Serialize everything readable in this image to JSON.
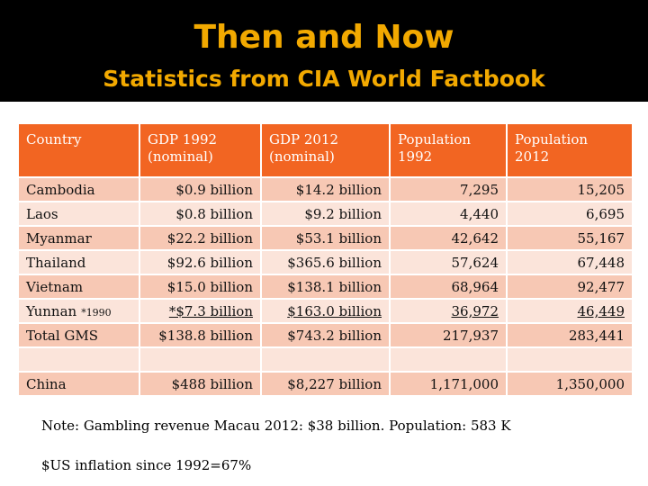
{
  "header": {
    "title": "Then and Now",
    "subtitle": "Statistics from CIA World Factbook"
  },
  "table": {
    "columns": [
      "Country",
      "GDP 1992 (nominal)",
      "GDP 2012 (nominal)",
      "Population 1992",
      "Population 2012"
    ],
    "rows": [
      {
        "country": "Cambodia",
        "gdp1992": "$0.9  billion",
        "gdp2012": "$14.2 billion",
        "pop1992": "7,295",
        "pop2012": "15,205"
      },
      {
        "country": "Laos",
        "gdp1992": "$0.8 billion",
        "gdp2012": "$9.2 billion",
        "pop1992": "4,440",
        "pop2012": "6,695"
      },
      {
        "country": "Myanmar",
        "gdp1992": "$22.2 billion",
        "gdp2012": "$53.1 billion",
        "pop1992": "42,642",
        "pop2012": "55,167"
      },
      {
        "country": "Thailand",
        "gdp1992": "$92.6 billion",
        "gdp2012": "$365.6 billion",
        "pop1992": "57,624",
        "pop2012": "67,448"
      },
      {
        "country": "Vietnam",
        "gdp1992": "$15.0 billion",
        "gdp2012": "$138.1 billion",
        "pop1992": "68,964",
        "pop2012": "92,477"
      },
      {
        "country": "Yunnan",
        "country_note": "*1990",
        "gdp1992": "*$7.3 billion",
        "gdp2012": "$163.0 billion",
        "pop1992": "36,972",
        "pop2012": "46,449"
      },
      {
        "country": "Total GMS",
        "gdp1992": "$138.8 billion",
        "gdp2012": "$743.2 billion",
        "pop1992": "217,937",
        "pop2012": "283,441"
      },
      {
        "country": "",
        "gdp1992": "",
        "gdp2012": "",
        "pop1992": "",
        "pop2012": ""
      },
      {
        "country": "China",
        "gdp1992": "$488 billion",
        "gdp2012": "$8,227 billion",
        "pop1992": "1,171,000",
        "pop2012": "1,350,000"
      }
    ]
  },
  "note": "Note: Gambling revenue Macau 2012: $38 billion. Population: 583 K",
  "inflation": "$US inflation since 1992=67%",
  "colors": {
    "header_bg": "#000000",
    "title_color": "#f2a900",
    "table_header_bg": "#f26522",
    "row_odd_bg": "#f7c8b4",
    "row_even_bg": "#fbe4da"
  }
}
